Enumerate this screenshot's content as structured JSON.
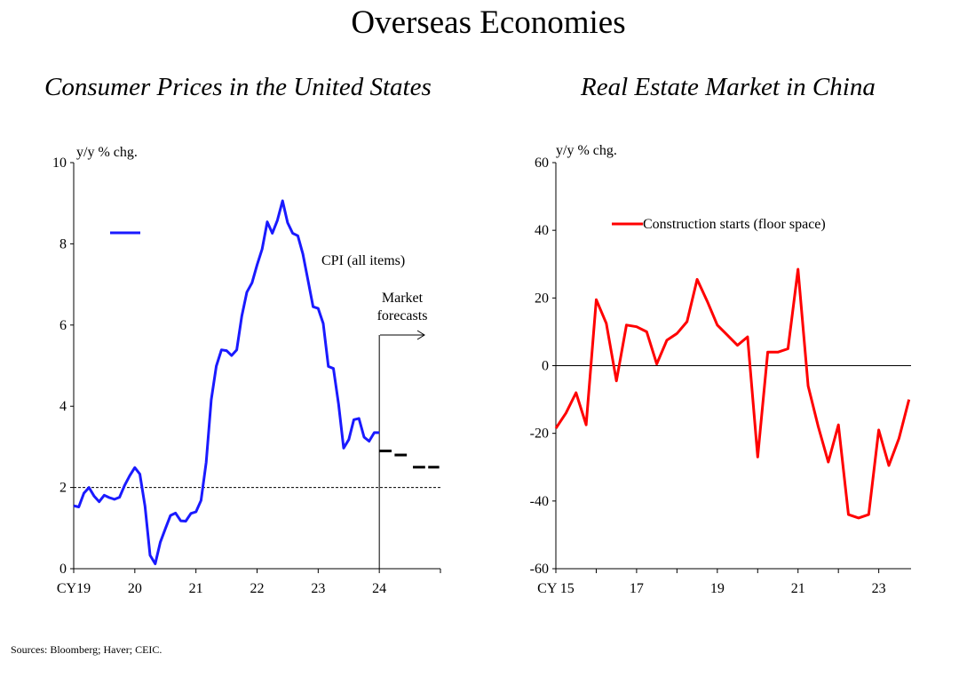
{
  "page": {
    "title": "Overseas Economies",
    "sources": "Sources: Bloomberg; Haver; CEIC."
  },
  "chart_data": [
    {
      "type": "line",
      "title": "Consumer Prices in the United States",
      "ylabel": "y/y % chg.",
      "ylim": [
        0,
        10
      ],
      "yticks": [
        0,
        2,
        4,
        6,
        8,
        10
      ],
      "xlim": [
        2019,
        2025
      ],
      "xticks": [
        {
          "value": 2019,
          "label": "CY19"
        },
        {
          "value": 2020,
          "label": "20"
        },
        {
          "value": 2021,
          "label": "21"
        },
        {
          "value": 2022,
          "label": "22"
        },
        {
          "value": 2023,
          "label": "23"
        },
        {
          "value": 2024,
          "label": "24"
        }
      ],
      "reference_line": {
        "y": 2,
        "style": "dashed"
      },
      "forecast_start": 2024,
      "annotation": "Market\nforecasts",
      "series": [
        {
          "name": "CPI (all items)",
          "color": "#1a1aff",
          "x": [
            2019.0,
            2019.083,
            2019.167,
            2019.25,
            2019.333,
            2019.417,
            2019.5,
            2019.583,
            2019.667,
            2019.75,
            2019.833,
            2019.917,
            2020.0,
            2020.083,
            2020.167,
            2020.25,
            2020.333,
            2020.417,
            2020.5,
            2020.583,
            2020.667,
            2020.75,
            2020.833,
            2020.917,
            2021.0,
            2021.083,
            2021.167,
            2021.25,
            2021.333,
            2021.417,
            2021.5,
            2021.583,
            2021.667,
            2021.75,
            2021.833,
            2021.917,
            2022.0,
            2022.083,
            2022.167,
            2022.25,
            2022.333,
            2022.417,
            2022.5,
            2022.583,
            2022.667,
            2022.75,
            2022.833,
            2022.917,
            2023.0,
            2023.083,
            2023.167,
            2023.25,
            2023.333,
            2023.417,
            2023.5,
            2023.583,
            2023.667,
            2023.75,
            2023.833,
            2023.917,
            2024.0
          ],
          "values": [
            1.55,
            1.52,
            1.86,
            2.0,
            1.79,
            1.65,
            1.81,
            1.75,
            1.71,
            1.76,
            2.05,
            2.29,
            2.49,
            2.33,
            1.54,
            0.33,
            0.12,
            0.65,
            0.99,
            1.31,
            1.37,
            1.18,
            1.17,
            1.36,
            1.4,
            1.68,
            2.62,
            4.16,
            4.99,
            5.39,
            5.37,
            5.25,
            5.39,
            6.22,
            6.81,
            7.04,
            7.48,
            7.87,
            8.54,
            8.26,
            8.58,
            9.06,
            8.52,
            8.26,
            8.2,
            7.75,
            7.11,
            6.45,
            6.41,
            6.04,
            4.98,
            4.93,
            4.05,
            2.97,
            3.18,
            3.67,
            3.7,
            3.24,
            3.14,
            3.35,
            3.35
          ]
        },
        {
          "name": "Market forecasts",
          "color": "#000000",
          "style": "dashed",
          "segments": [
            {
              "x": [
                2024.0,
                2024.2
              ],
              "value": 2.9
            },
            {
              "x": [
                2024.25,
                2024.45
              ],
              "value": 2.8
            },
            {
              "x": [
                2024.55,
                2024.75
              ],
              "value": 2.5
            },
            {
              "x": [
                2024.8,
                2024.98
              ],
              "value": 2.5
            }
          ]
        }
      ]
    },
    {
      "type": "line",
      "title": "Real Estate Market in China",
      "ylabel": "y/y % chg.",
      "ylim": [
        -60,
        60
      ],
      "yticks": [
        -60,
        -40,
        -20,
        0,
        20,
        40,
        60
      ],
      "xlim": [
        2015,
        2023.8
      ],
      "xticks": [
        {
          "value": 2015,
          "label": "CY 15"
        },
        {
          "value": 2017,
          "label": "17"
        },
        {
          "value": 2019,
          "label": "19"
        },
        {
          "value": 2021,
          "label": "21"
        },
        {
          "value": 2023,
          "label": "23"
        }
      ],
      "reference_line": {
        "y": 0,
        "style": "solid"
      },
      "series": [
        {
          "name": "Construction starts (floor space)",
          "color": "#ff0000",
          "x": [
            2015.0,
            2015.25,
            2015.5,
            2015.75,
            2016.0,
            2016.25,
            2016.5,
            2016.75,
            2017.0,
            2017.25,
            2017.5,
            2017.75,
            2018.0,
            2018.25,
            2018.5,
            2018.75,
            2019.0,
            2019.25,
            2019.5,
            2019.75,
            2020.0,
            2020.25,
            2020.5,
            2020.75,
            2021.0,
            2021.25,
            2021.5,
            2021.75,
            2022.0,
            2022.25,
            2022.5,
            2022.75,
            2023.0,
            2023.25,
            2023.5,
            2023.75
          ],
          "values": [
            -18.5,
            -14,
            -8,
            -17.5,
            19.5,
            12.5,
            -4.5,
            12,
            11.5,
            10,
            0.5,
            7.5,
            9.5,
            13,
            25.5,
            19,
            12,
            9,
            6,
            8.5,
            -27,
            4,
            4,
            5,
            28.5,
            -6,
            -18,
            -28.5,
            -17.5,
            -44,
            -45,
            -44,
            -19,
            -29.5,
            -21.5,
            -10
          ]
        }
      ]
    }
  ]
}
